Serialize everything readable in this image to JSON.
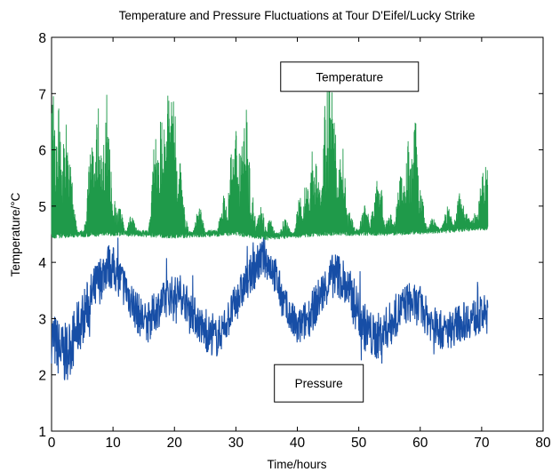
{
  "chart_data": {
    "type": "line",
    "title": "Temperature and Pressure Fluctuations at Tour D'Eifel/Lucky Strike",
    "xlabel": "Time/hours",
    "ylabel": "Temperature/°C",
    "xlim": [
      0,
      80
    ],
    "ylim": [
      1,
      8
    ],
    "xticks": [
      "0",
      "10",
      "20",
      "30",
      "40",
      "50",
      "60",
      "70",
      "80"
    ],
    "yticks": [
      "1",
      "2",
      "3",
      "4",
      "5",
      "6",
      "7",
      "8"
    ],
    "grid": false,
    "legend": "annotation boxes",
    "series": [
      {
        "name": "Temperature",
        "color": "#1f9a4a",
        "baseline": [
          [
            0,
            4.45
          ],
          [
            10,
            4.5
          ],
          [
            20,
            4.45
          ],
          [
            30,
            4.5
          ],
          [
            35,
            4.42
          ],
          [
            45,
            4.5
          ],
          [
            55,
            4.5
          ],
          [
            65,
            4.55
          ],
          [
            71,
            4.6
          ]
        ],
        "peaks": [
          [
            0.3,
            7.0
          ],
          [
            1.2,
            6.8
          ],
          [
            2.3,
            6.6
          ],
          [
            3.0,
            5.8
          ],
          [
            6.5,
            6.2
          ],
          [
            7.6,
            6.8
          ],
          [
            8.3,
            6.0
          ],
          [
            9.0,
            7.1
          ],
          [
            10.0,
            5.2
          ],
          [
            11.0,
            5.0
          ],
          [
            13.0,
            4.85
          ],
          [
            17.0,
            6.4
          ],
          [
            18.0,
            6.8
          ],
          [
            19.0,
            7.1
          ],
          [
            19.8,
            7.35
          ],
          [
            20.6,
            6.3
          ],
          [
            21.5,
            5.0
          ],
          [
            24.0,
            5.0
          ],
          [
            28.0,
            5.2
          ],
          [
            29.5,
            6.2
          ],
          [
            30.2,
            6.6
          ],
          [
            31.0,
            6.5
          ],
          [
            31.6,
            6.9
          ],
          [
            32.4,
            5.4
          ],
          [
            34.0,
            5.1
          ],
          [
            35.5,
            4.8
          ],
          [
            38.0,
            4.8
          ],
          [
            40.5,
            5.2
          ],
          [
            41.5,
            5.5
          ],
          [
            42.5,
            6.1
          ],
          [
            43.2,
            5.9
          ],
          [
            44.0,
            5.0
          ],
          [
            44.8,
            7.2
          ],
          [
            45.3,
            7.55
          ],
          [
            46.0,
            6.5
          ],
          [
            47.2,
            6.2
          ],
          [
            48.5,
            4.9
          ],
          [
            51.0,
            5.1
          ],
          [
            52.5,
            5.0
          ],
          [
            53.2,
            5.8
          ],
          [
            55.0,
            4.9
          ],
          [
            56.8,
            5.6
          ],
          [
            58.0,
            6.3
          ],
          [
            59.1,
            6.6
          ],
          [
            60.0,
            5.3
          ],
          [
            62.0,
            4.8
          ],
          [
            64.5,
            5.0
          ],
          [
            66.5,
            5.3
          ],
          [
            67.5,
            4.9
          ],
          [
            69.0,
            4.9
          ],
          [
            70.2,
            5.6
          ],
          [
            70.8,
            5.85
          ]
        ]
      },
      {
        "name": "Pressure",
        "color": "#174ea6",
        "centerline": [
          [
            0,
            2.7
          ],
          [
            1,
            2.5
          ],
          [
            2,
            2.35
          ],
          [
            3,
            2.5
          ],
          [
            5,
            3.0
          ],
          [
            7,
            3.5
          ],
          [
            9,
            3.95
          ],
          [
            10,
            3.9
          ],
          [
            12,
            3.55
          ],
          [
            14,
            3.1
          ],
          [
            15.5,
            2.9
          ],
          [
            17,
            3.15
          ],
          [
            19,
            3.4
          ],
          [
            21,
            3.45
          ],
          [
            23,
            3.1
          ],
          [
            25,
            2.75
          ],
          [
            27,
            2.65
          ],
          [
            29,
            3.05
          ],
          [
            31,
            3.5
          ],
          [
            33,
            3.9
          ],
          [
            34.5,
            4.1
          ],
          [
            36,
            3.9
          ],
          [
            38,
            3.2
          ],
          [
            40,
            2.8
          ],
          [
            42,
            3.05
          ],
          [
            44,
            3.45
          ],
          [
            46,
            3.8
          ],
          [
            47,
            3.75
          ],
          [
            49,
            3.35
          ],
          [
            51,
            2.85
          ],
          [
            52.5,
            2.65
          ],
          [
            54,
            2.75
          ],
          [
            56,
            3.05
          ],
          [
            58,
            3.3
          ],
          [
            60,
            3.2
          ],
          [
            62,
            2.9
          ],
          [
            64,
            2.75
          ],
          [
            66,
            2.9
          ],
          [
            68,
            3.0
          ],
          [
            70,
            3.05
          ],
          [
            71,
            3.1
          ]
        ],
        "amplitude": [
          [
            0,
            0.5
          ],
          [
            2,
            0.55
          ],
          [
            10,
            0.4
          ],
          [
            20,
            0.35
          ],
          [
            30,
            0.35
          ],
          [
            40,
            0.35
          ],
          [
            50,
            0.45
          ],
          [
            60,
            0.35
          ],
          [
            71,
            0.35
          ]
        ]
      }
    ],
    "annotations": [
      {
        "text": "Temperature",
        "x": 48.5,
        "y": 7.3
      },
      {
        "text": "Pressure",
        "x": 43.5,
        "y": 1.85
      }
    ]
  }
}
